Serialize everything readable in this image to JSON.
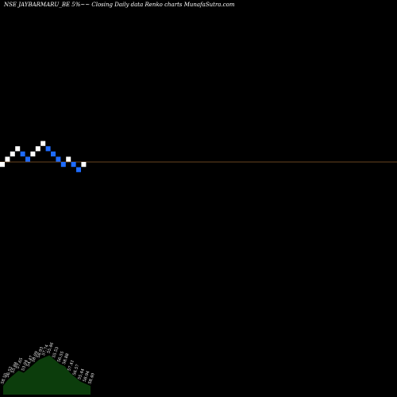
{
  "chart_data": {
    "type": "renko",
    "title": "NSE JAYBARMARU_BE 5%~~ Closing Daily data Renko charts MunafaSutra.com",
    "colors": {
      "background": "#000000",
      "up_brick": "#ffffff",
      "down_brick": "#1e6bff",
      "reference_line": "#8b5a2b",
      "volume_area": "#0c3d0c"
    },
    "bricks": [
      {
        "dir": "up",
        "level": 0
      },
      {
        "dir": "up",
        "level": 1
      },
      {
        "dir": "up",
        "level": 2
      },
      {
        "dir": "up",
        "level": 3
      },
      {
        "dir": "down",
        "level": 2
      },
      {
        "dir": "down",
        "level": 1
      },
      {
        "dir": "up",
        "level": 2
      },
      {
        "dir": "up",
        "level": 3
      },
      {
        "dir": "up",
        "level": 4
      },
      {
        "dir": "down",
        "level": 3
      },
      {
        "dir": "down",
        "level": 2
      },
      {
        "dir": "down",
        "level": 1
      },
      {
        "dir": "down",
        "level": 0
      },
      {
        "dir": "up",
        "level": 1
      },
      {
        "dir": "down",
        "level": 0
      },
      {
        "dir": "down",
        "level": -1
      },
      {
        "dir": "up",
        "level": 0
      }
    ],
    "reference_level": 1,
    "volume_labels": [
      "58.55",
      "56.52",
      "55.88",
      "57.65",
      "53.04",
      "54.47",
      "58.09",
      "58.93",
      "57.74",
      "55.46",
      "55.53",
      "56.55",
      "58.88",
      "57.41",
      "56.57",
      "55.44",
      "58.94",
      "58.40"
    ],
    "volume_profile": [
      0.2,
      0.35,
      0.45,
      0.55,
      0.5,
      0.6,
      0.7,
      0.8,
      0.85,
      0.9,
      0.8,
      0.7,
      0.65,
      0.5,
      0.4,
      0.3,
      0.25,
      0.2
    ]
  }
}
